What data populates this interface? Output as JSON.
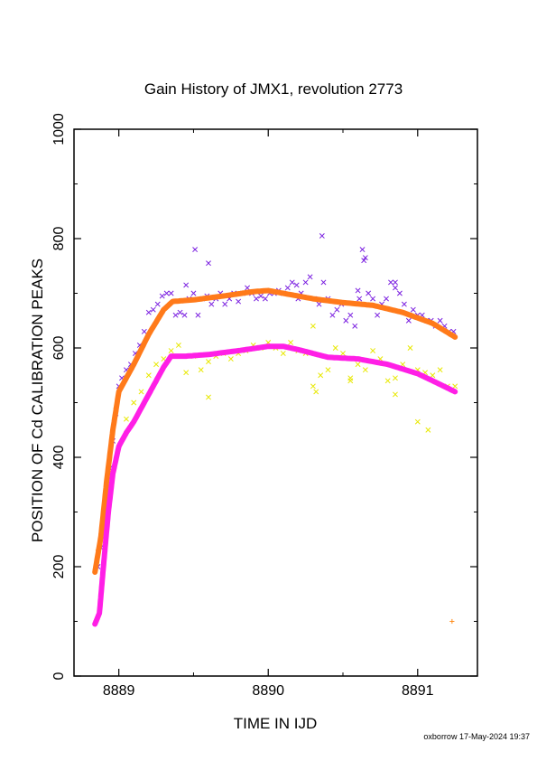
{
  "footer": {
    "signature": "oxborrow 17-May-2024 19:37"
  },
  "chart_data": {
    "type": "scatter",
    "title": "Gain History of JMX1, revolution 2773",
    "xlabel": "TIME IN IJD",
    "ylabel": "POSITION OF Cd CALIBRATION PEAKS",
    "xlim": [
      8888.7,
      8891.4
    ],
    "ylim": [
      0,
      1000
    ],
    "xticks": [
      8889,
      8890,
      8891
    ],
    "xtick_labels": [
      "8889",
      "8890",
      "8891"
    ],
    "yticks": [
      0,
      200,
      400,
      600,
      800,
      1000
    ],
    "ytick_labels": [
      "0",
      "200",
      "400",
      "600",
      "800",
      "1000"
    ],
    "grid": false,
    "series": [
      {
        "kind": "points",
        "marker": "x",
        "color": "#7a1fe0",
        "x": [
          8888.86,
          8888.88,
          8888.9,
          8888.92,
          8888.94,
          8888.96,
          8888.98,
          8889.0,
          8889.02,
          8889.05,
          8889.08,
          8889.11,
          8889.14,
          8889.17,
          8889.2,
          8889.23,
          8889.26,
          8889.29,
          8889.32,
          8889.35,
          8889.38,
          8889.41,
          8889.44,
          8889.47,
          8889.5,
          8889.53,
          8889.56,
          8889.59,
          8889.62,
          8889.65,
          8889.68,
          8889.71,
          8889.74,
          8889.77,
          8889.8,
          8889.83,
          8889.86,
          8889.89,
          8889.92,
          8889.95,
          8889.98,
          8890.01,
          8890.04,
          8890.07,
          8890.1,
          8890.13,
          8890.16,
          8890.19,
          8890.22,
          8890.25,
          8890.28,
          8890.31,
          8890.34,
          8890.37,
          8890.4,
          8890.43,
          8890.46,
          8890.49,
          8890.52,
          8890.55,
          8890.58,
          8890.61,
          8890.64,
          8890.67,
          8890.7,
          8890.73,
          8890.76,
          8890.79,
          8890.82,
          8890.85,
          8890.88,
          8890.91,
          8890.94,
          8890.97,
          8891.0,
          8891.03,
          8891.06,
          8891.09,
          8891.12,
          8891.15,
          8891.18,
          8891.21,
          8891.24,
          8889.51,
          8890.36,
          8890.63,
          8890.65,
          8889.6,
          8890.85,
          8890.6,
          8889.45,
          8890.2
        ],
        "y": [
          200,
          235,
          270,
          320,
          380,
          430,
          480,
          530,
          545,
          560,
          570,
          590,
          605,
          630,
          665,
          670,
          680,
          695,
          700,
          700,
          660,
          665,
          660,
          690,
          700,
          660,
          690,
          695,
          680,
          690,
          700,
          680,
          690,
          700,
          685,
          700,
          710,
          700,
          690,
          695,
          690,
          700,
          700,
          705,
          700,
          710,
          720,
          715,
          700,
          720,
          730,
          690,
          680,
          720,
          690,
          660,
          670,
          680,
          650,
          660,
          640,
          690,
          760,
          700,
          690,
          660,
          680,
          690,
          720,
          710,
          700,
          680,
          650,
          670,
          660,
          660,
          650,
          650,
          640,
          650,
          640,
          630,
          630,
          780,
          805,
          780,
          765,
          755,
          720,
          705,
          715,
          690
        ]
      },
      {
        "kind": "points",
        "marker": "x",
        "color": "#e8e800",
        "x": [
          8889.05,
          8889.1,
          8889.15,
          8889.2,
          8889.25,
          8889.3,
          8889.35,
          8889.4,
          8889.45,
          8889.5,
          8889.55,
          8889.6,
          8889.65,
          8889.7,
          8889.75,
          8889.8,
          8889.85,
          8889.9,
          8889.95,
          8890.0,
          8890.05,
          8890.1,
          8890.15,
          8890.2,
          8890.25,
          8890.3,
          8890.35,
          8890.4,
          8890.45,
          8890.5,
          8890.55,
          8890.6,
          8890.65,
          8890.7,
          8890.75,
          8890.8,
          8890.85,
          8890.9,
          8890.95,
          8891.0,
          8891.05,
          8891.1,
          8891.15,
          8891.2,
          8891.25,
          8889.6,
          8890.3,
          8890.85,
          8891.0,
          8891.07,
          8890.32,
          8890.55
        ],
        "y": [
          470,
          500,
          520,
          550,
          570,
          580,
          595,
          605,
          555,
          585,
          560,
          575,
          585,
          590,
          580,
          590,
          595,
          605,
          600,
          610,
          600,
          590,
          610,
          595,
          590,
          640,
          550,
          560,
          600,
          590,
          545,
          570,
          560,
          595,
          580,
          540,
          545,
          570,
          600,
          560,
          555,
          550,
          560,
          530,
          530,
          510,
          530,
          515,
          465,
          450,
          520,
          540
        ]
      },
      {
        "kind": "points",
        "marker": "+",
        "color": "#ff8c1a",
        "x": [
          8888.84,
          8888.86,
          8888.88,
          8888.9,
          8888.92,
          8888.94,
          8888.96,
          8888.98,
          8889.0,
          8891.23
        ],
        "y": [
          195,
          230,
          260,
          300,
          350,
          400,
          450,
          490,
          520,
          100
        ]
      },
      {
        "kind": "curve",
        "color": "#ff7a1a",
        "x": [
          8888.84,
          8888.88,
          8888.92,
          8888.96,
          8889.0,
          8889.1,
          8889.2,
          8889.3,
          8889.36,
          8889.5,
          8889.7,
          8889.9,
          8890.0,
          8890.1,
          8890.3,
          8890.5,
          8890.7,
          8890.9,
          8891.1,
          8891.25
        ],
        "y": [
          190,
          255,
          360,
          450,
          520,
          570,
          625,
          670,
          685,
          688,
          695,
          703,
          705,
          700,
          690,
          683,
          678,
          665,
          645,
          620
        ]
      },
      {
        "kind": "curve",
        "color": "#ff1fe6",
        "x": [
          8888.84,
          8888.87,
          8888.9,
          8888.93,
          8888.96,
          8889.0,
          8889.05,
          8889.1,
          8889.15,
          8889.2,
          8889.25,
          8889.3,
          8889.35,
          8889.45,
          8889.6,
          8889.8,
          8890.0,
          8890.1,
          8890.2,
          8890.3,
          8890.4,
          8890.6,
          8890.8,
          8891.0,
          8891.1,
          8891.25
        ],
        "y": [
          95,
          115,
          210,
          300,
          370,
          420,
          445,
          465,
          490,
          515,
          540,
          565,
          585,
          585,
          588,
          595,
          603,
          603,
          597,
          590,
          583,
          580,
          570,
          553,
          540,
          520
        ]
      }
    ]
  }
}
